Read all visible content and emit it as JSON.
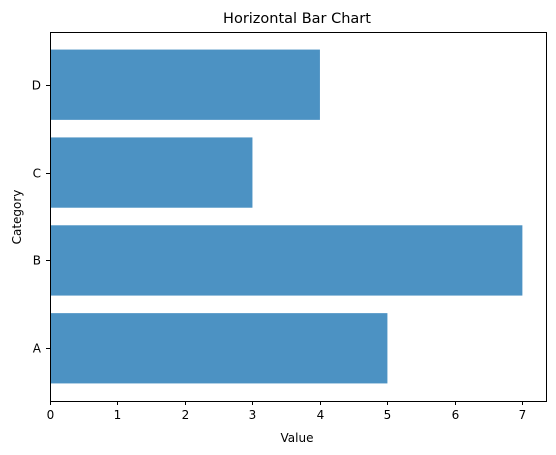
{
  "chart_data": {
    "type": "bar",
    "orientation": "horizontal",
    "title": "Horizontal Bar Chart",
    "xlabel": "Value",
    "ylabel": "Category",
    "categories": [
      "A",
      "B",
      "C",
      "D"
    ],
    "values": [
      5,
      7,
      3,
      4
    ],
    "xlim": [
      0,
      7.35
    ],
    "xticks": [
      0,
      1,
      2,
      3,
      4,
      5,
      6,
      7
    ],
    "bar_color": "#4c92c3",
    "grid": false,
    "legend": "none"
  }
}
